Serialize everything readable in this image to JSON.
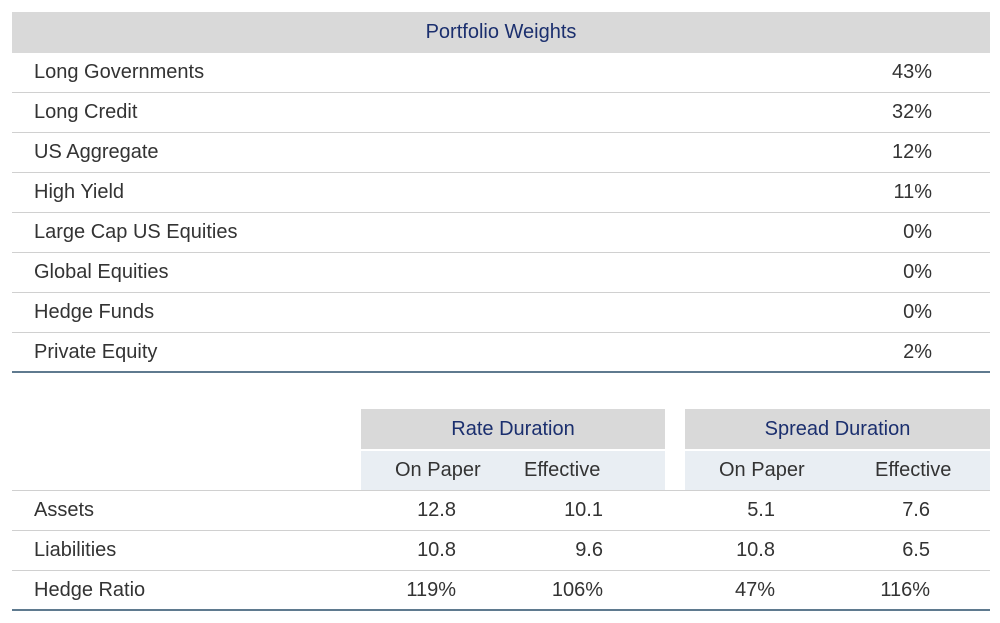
{
  "portfolio": {
    "title": "Portfolio Weights",
    "rows": [
      {
        "label": "Long Governments",
        "value": "43%"
      },
      {
        "label": "Long Credit",
        "value": "32%"
      },
      {
        "label": "US Aggregate",
        "value": "12%"
      },
      {
        "label": "High Yield",
        "value": "11%"
      },
      {
        "label": "Large Cap US Equities",
        "value": "0%"
      },
      {
        "label": "Global Equities",
        "value": "0%"
      },
      {
        "label": "Hedge Funds",
        "value": "0%"
      },
      {
        "label": "Private Equity",
        "value": "2%"
      }
    ]
  },
  "duration": {
    "rate_header": "Rate Duration",
    "spread_header": "Spread Duration",
    "sub_on_paper": "On Paper",
    "sub_effective": "Effective",
    "rows": [
      {
        "label": "Assets",
        "rate_paper": "12.8",
        "rate_eff": "10.1",
        "spread_paper": "5.1",
        "spread_eff": "7.6"
      },
      {
        "label": "Liabilities",
        "rate_paper": "10.8",
        "rate_eff": "9.6",
        "spread_paper": "10.8",
        "spread_eff": "6.5"
      },
      {
        "label": "Hedge Ratio",
        "rate_paper": "119%",
        "rate_eff": "106%",
        "spread_paper": "47%",
        "spread_eff": "116%"
      }
    ]
  },
  "colors": {
    "header_bg": "#d9d9d9",
    "header_text": "#1b2f6e",
    "subheader_bg": "#e9eef3",
    "rule": "#5f7a8f"
  }
}
